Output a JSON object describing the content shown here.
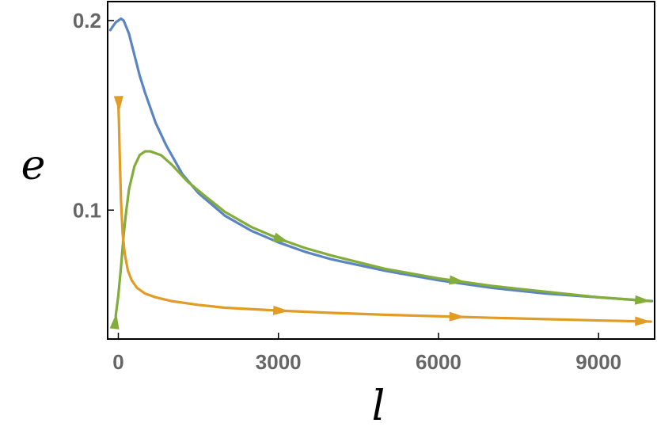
{
  "chart_data": {
    "type": "line",
    "xlabel": "l",
    "ylabel": "e",
    "xlim": [
      -200,
      10050
    ],
    "ylim": [
      0.032,
      0.21
    ],
    "x_ticks": [
      {
        "value": 0,
        "label": "0"
      },
      {
        "value": 3000,
        "label": "3000"
      },
      {
        "value": 6000,
        "label": "6000"
      },
      {
        "value": 9000,
        "label": "9000"
      }
    ],
    "y_ticks": [
      {
        "value": 0.1,
        "label": "0.1"
      },
      {
        "value": 0.2,
        "label": "0.2"
      }
    ],
    "grid": false,
    "legend": "none",
    "series": [
      {
        "color": "#5b85c2",
        "x": [
          -150,
          -100,
          -50,
          0,
          50,
          100,
          200,
          300,
          400,
          500,
          700,
          900,
          1200,
          1500,
          2000,
          2500,
          3000,
          3500,
          4000,
          5000,
          6000,
          7000,
          8000,
          9000,
          10000
        ],
        "y": [
          0.195,
          0.197,
          0.199,
          0.2,
          0.201,
          0.2,
          0.193,
          0.182,
          0.171,
          0.162,
          0.146,
          0.134,
          0.119,
          0.109,
          0.097,
          0.089,
          0.083,
          0.078,
          0.074,
          0.068,
          0.063,
          0.059,
          0.056,
          0.054,
          0.052
        ],
        "arrows_at": []
      },
      {
        "color": "#83ad3a",
        "x": [
          -50,
          0,
          50,
          100,
          150,
          200,
          300,
          400,
          500,
          600,
          700,
          800,
          1000,
          1300,
          1600,
          2000,
          2500,
          3000,
          3500,
          4000,
          5000,
          6000,
          7000,
          8000,
          9000,
          9980
        ],
        "y": [
          0.044,
          0.055,
          0.07,
          0.087,
          0.1,
          0.111,
          0.123,
          0.129,
          0.131,
          0.131,
          0.13,
          0.129,
          0.124,
          0.115,
          0.108,
          0.099,
          0.091,
          0.085,
          0.08,
          0.076,
          0.069,
          0.064,
          0.06,
          0.057,
          0.054,
          0.052
        ],
        "arrows_at": [
          3200,
          6500,
          9980
        ]
      },
      {
        "color": "#e19c25",
        "x": [
          0,
          10,
          25,
          50,
          80,
          120,
          180,
          250,
          350,
          500,
          700,
          1000,
          1500,
          2000,
          3000,
          4000,
          5000,
          6000,
          7000,
          8000,
          9000,
          9980
        ],
        "y": [
          0.156,
          0.148,
          0.13,
          0.105,
          0.088,
          0.077,
          0.068,
          0.063,
          0.059,
          0.056,
          0.054,
          0.052,
          0.05,
          0.0485,
          0.047,
          0.0458,
          0.0448,
          0.044,
          0.0432,
          0.0425,
          0.0418,
          0.0412
        ],
        "arrows_at": [
          3200,
          6500,
          9980
        ],
        "start_arrow": true
      }
    ]
  }
}
